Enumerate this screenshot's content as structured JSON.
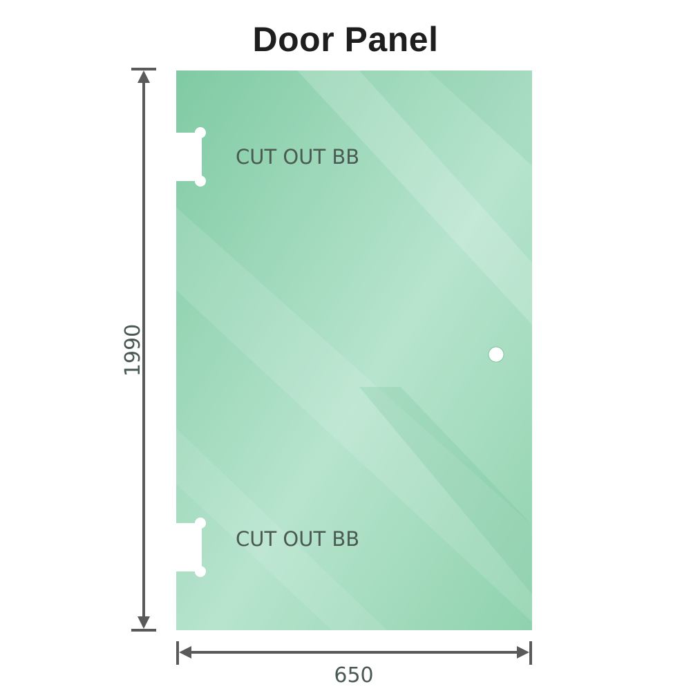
{
  "title": "Door Panel",
  "panel": {
    "cutout_top_label": "CUT OUT BB",
    "cutout_bottom_label": "CUT OUT BB",
    "glass_color": "#8fd0ae"
  },
  "dimensions": {
    "height": "1990",
    "width": "650"
  }
}
